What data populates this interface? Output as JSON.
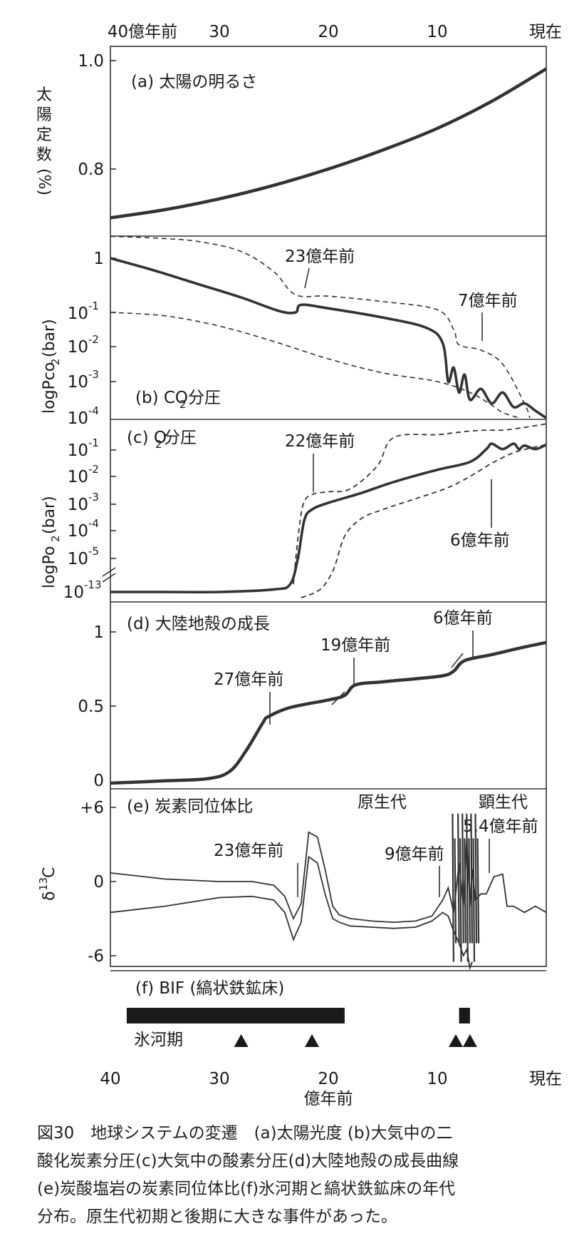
{
  "figure_number": "図30",
  "figure_title": "地球システムの変遷",
  "caption_lines": [
    "図30　地球システムの変遷　(a)太陽光度 (b)大気中の二",
    "酸化炭素分圧(c)大気中の酸素分圧(d)大陸地殻の成長曲線",
    "(e)炭酸塩岩の炭素同位体比(f)氷河期と縞状鉄鉱床の年代",
    "分布。原生代初期と後期に大きな事件があった。"
  ],
  "top_axis_ticks": [
    "40億年前",
    "30",
    "20",
    "10",
    "現在"
  ],
  "bottom_axis_ticks": [
    "40",
    "30",
    "20",
    "10",
    "現在"
  ],
  "bottom_axis_title": "億年前",
  "panel_labels": {
    "a": "(a) 太陽の明るさ",
    "b_prefix": "(b) CO",
    "b_sub": "2",
    "b_suffix": "分圧",
    "c_prefix": "(c) O",
    "c_sub": "2",
    "c_suffix": "分圧",
    "d": "(d) 大陸地殻の成長",
    "e": "(e) 炭素同位体比",
    "f": "(f) BIF (縞状鉄鉱床)"
  },
  "y_axis_labels": {
    "a_vertical": [
      "太",
      "陽",
      "定",
      "数",
      "(%)"
    ],
    "b_prefix": "logPco",
    "b_sub": "2",
    "b_suffix": "(bar)",
    "c_prefix": "logPo",
    "c_sub": "2",
    "c_suffix": "(bar)",
    "e_prefix": "δ",
    "e_sup": "13",
    "e_suffix": "C"
  },
  "y_ticks": {
    "a": [
      "1.0",
      "0.8"
    ],
    "b": [
      "1",
      "-1",
      "-2",
      "-3",
      "-4"
    ],
    "c": [
      "-1",
      "-2",
      "-3",
      "-4",
      "-5",
      "-13"
    ],
    "d": [
      "1",
      "0.5",
      "0"
    ],
    "e": [
      "+6",
      "0",
      "-6"
    ]
  },
  "annotations": {
    "b_23": "23億年前",
    "b_7": "7億年前",
    "c_22": "22億年前",
    "c_6": "6億年前",
    "d_27": "27億年前",
    "d_19": "19億年前",
    "d_6": "6億年前",
    "e_23": "23億年前",
    "e_9": "9億年前",
    "e_54": "5.4億年前",
    "e_proterozoic": "原生代",
    "e_phanerozoic": "顕生代",
    "f_glacial": "氷河期"
  },
  "colors": {
    "ink": "#1a1a1a",
    "curve": "#333333"
  },
  "chart_data": [
    {
      "type": "line",
      "panel": "a",
      "title": "(a) 太陽の明るさ",
      "xlabel": "億年前",
      "ylabel": "太陽定数 (%)",
      "x_reversed": true,
      "xlim": [
        40,
        0
      ],
      "ylim": [
        0.67,
        1.03
      ],
      "series": [
        {
          "x": [
            40,
            35,
            30,
            25,
            20,
            15,
            10,
            5,
            0
          ],
          "y": [
            0.71,
            0.725,
            0.745,
            0.77,
            0.8,
            0.835,
            0.875,
            0.925,
            0.985
          ]
        }
      ]
    },
    {
      "type": "line",
      "panel": "b",
      "title": "(b) CO2分圧",
      "ylabel": "logPco2(bar)",
      "x_reversed": true,
      "xlim": [
        40,
        0
      ],
      "ylim": [
        -4,
        1.7
      ],
      "series": [
        {
          "x": [
            40,
            36,
            32,
            28,
            24.5,
            23,
            22.5,
            20,
            15,
            11,
            9.5,
            9,
            8.5,
            8,
            7.5,
            7,
            6,
            5,
            4,
            3,
            2,
            1,
            0
          ],
          "y": [
            1.0,
            0.55,
            0.05,
            -0.45,
            -0.95,
            -1.0,
            -0.72,
            -0.85,
            -1.15,
            -1.45,
            -1.9,
            -3.0,
            -2.6,
            -3.3,
            -2.8,
            -3.5,
            -3.2,
            -3.6,
            -3.3,
            -3.7,
            -3.6,
            -3.8,
            -4.0
          ]
        },
        {
          "x": [
            40,
            36,
            32,
            28,
            25,
            23,
            20,
            15,
            10,
            8.5,
            8,
            6,
            4,
            2,
            1.5
          ],
          "y": [
            1.65,
            1.6,
            1.5,
            1.2,
            0.5,
            -0.35,
            -0.4,
            -0.6,
            -0.9,
            -1.5,
            -1.95,
            -2.1,
            -2.5,
            -3.6,
            -4.0
          ]
        },
        {
          "x": [
            40,
            35,
            30,
            25,
            20,
            15,
            10,
            7,
            5,
            4,
            2.5
          ],
          "y": [
            -1.0,
            -1.1,
            -1.4,
            -1.85,
            -2.35,
            -2.75,
            -3.0,
            -3.3,
            -3.65,
            -3.85,
            -4.0
          ]
        }
      ]
    },
    {
      "type": "line",
      "panel": "c",
      "title": "(c) O2分圧",
      "ylabel": "logPo2(bar)",
      "x_reversed": true,
      "xlim": [
        40,
        0
      ],
      "ylim": [
        -6.3,
        0.5
      ],
      "series": [
        {
          "x": [
            40,
            35,
            30,
            25,
            23.5,
            22.8,
            22.2,
            21.5,
            20,
            17,
            14,
            10,
            7,
            5.5,
            5,
            4,
            3,
            2.5,
            2,
            1,
            0
          ],
          "y": [
            -6.3,
            -6.3,
            -6.3,
            -6.2,
            -6.0,
            -5.0,
            -3.6,
            -3.2,
            -2.95,
            -2.6,
            -2.2,
            -1.75,
            -1.45,
            -0.95,
            -0.65,
            -0.95,
            -0.65,
            -0.95,
            -0.75,
            -0.95,
            -0.7
          ]
        },
        {
          "x": [
            23.2,
            22.8,
            22.3,
            21.5,
            20,
            18,
            15.5,
            14,
            10,
            8.5,
            7,
            5.5,
            4,
            2,
            0
          ],
          "y": [
            -6.0,
            -4.3,
            -3.0,
            -2.65,
            -2.55,
            -2.45,
            -1.6,
            -0.3,
            -0.15,
            -0.05,
            0.05,
            0.1,
            0.1,
            0.25,
            0.45
          ]
        },
        {
          "x": [
            22.5,
            21.5,
            20.5,
            19.5,
            18.5,
            17,
            15,
            12,
            9,
            7,
            5,
            3,
            1.5,
            0
          ],
          "y": [
            -6.6,
            -6.4,
            -6.1,
            -5.4,
            -4.2,
            -3.55,
            -3.2,
            -2.8,
            -2.4,
            -2.0,
            -1.5,
            -1.1,
            -0.9,
            -0.7
          ]
        }
      ]
    },
    {
      "type": "line",
      "panel": "d",
      "title": "(d) 大陸地殻の成長",
      "x_reversed": true,
      "xlim": [
        40,
        0
      ],
      "ylim": [
        0,
        1.1
      ],
      "series": [
        {
          "x": [
            40,
            35,
            31,
            29,
            27.5,
            26,
            25.5,
            23.5,
            20,
            18.5,
            17.5,
            15,
            12,
            9.5,
            8.5,
            7.5,
            5,
            2,
            0
          ],
          "y": [
            0,
            0.015,
            0.03,
            0.08,
            0.22,
            0.4,
            0.44,
            0.5,
            0.55,
            0.58,
            0.65,
            0.67,
            0.69,
            0.71,
            0.74,
            0.81,
            0.85,
            0.9,
            0.93
          ]
        }
      ]
    },
    {
      "type": "line",
      "panel": "e",
      "title": "(e) 炭素同位体比",
      "ylabel": "δ13C",
      "x_reversed": true,
      "xlim": [
        40,
        0
      ],
      "ylim": [
        -7,
        7
      ],
      "series": [
        {
          "x": [
            40,
            35,
            30,
            27,
            25,
            24,
            23.2,
            22.5,
            21.8,
            21,
            20.3,
            19.6,
            19,
            18,
            16,
            14,
            12,
            10.5,
            9.5,
            9,
            8.5,
            8,
            7.6,
            7.3,
            7,
            6.8,
            6.5,
            6,
            5.5,
            4.8,
            4,
            3.6,
            3,
            2,
            1,
            0
          ],
          "y": [
            0.7,
            0.2,
            0,
            0,
            -0.3,
            -1.2,
            -3.0,
            -1.8,
            4.0,
            3.6,
            1.0,
            -2.0,
            -2.7,
            -3.0,
            -3.2,
            -3.3,
            -3.2,
            -2.8,
            -1.5,
            -0.5,
            -2.5,
            1.5,
            -2.0,
            3.5,
            -2.0,
            1.0,
            -1.5,
            -1.0,
            -1.0,
            0.4,
            0.6,
            -2.0,
            -2.0,
            -2.5,
            -2.0,
            -2.5
          ]
        },
        {
          "x": [
            40,
            35,
            30,
            27,
            25,
            24,
            23.2,
            22.5,
            21.8,
            21,
            20.3,
            19.6,
            19,
            18,
            16,
            14,
            12,
            10.5,
            9.5,
            9,
            8.5,
            8,
            7.6,
            7.3,
            7,
            6.8
          ],
          "y": [
            -2.5,
            -2.0,
            -1.3,
            -1.2,
            -1.5,
            -2.5,
            -4.7,
            -3.3,
            2.0,
            1.5,
            -1.0,
            -3.0,
            -3.3,
            -3.6,
            -3.7,
            -3.8,
            -3.7,
            -3.2,
            -2.5,
            -2.8,
            -4.0,
            -5.0,
            -6.0,
            -5.5,
            -7.0,
            -6.5
          ]
        }
      ]
    },
    {
      "type": "bar",
      "panel": "f",
      "title": "(f) BIF (縞状鉄鉱床)",
      "series": [
        {
          "name": "BIF",
          "intervals": [
            [
              38.5,
              18.5
            ],
            [
              8,
              7
            ]
          ]
        },
        {
          "name": "氷河期",
          "points": [
            28,
            21.5,
            8.3,
            7
          ]
        }
      ]
    }
  ]
}
